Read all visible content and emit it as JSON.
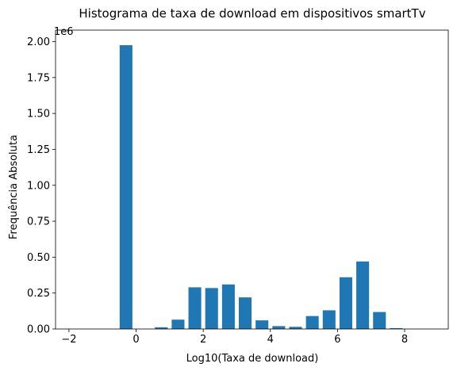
{
  "chart_data": {
    "type": "bar",
    "title": "Histograma de taxa de download em dispositivos smartTv",
    "xlabel": "Log10(Taxa de download)",
    "ylabel": "Frequência Absoluta",
    "y_offset_text": "1e6",
    "xlim": [
      -2.4,
      9.3
    ],
    "ylim": [
      0,
      2.08
    ],
    "x_ticks": [
      -2,
      0,
      2,
      4,
      6,
      8
    ],
    "x_tick_labels": [
      "−2",
      "0",
      "2",
      "4",
      "6",
      "8"
    ],
    "y_ticks": [
      0,
      0.25,
      0.5,
      0.75,
      1.0,
      1.25,
      1.5,
      1.75,
      2.0
    ],
    "y_tick_labels": [
      "0.00",
      "0.25",
      "0.50",
      "0.75",
      "1.00",
      "1.25",
      "1.50",
      "1.75",
      "2.00"
    ],
    "bar_width": 0.38,
    "grid": false,
    "legend": "none",
    "color": "#1f77b4",
    "bars": [
      {
        "x": -0.3,
        "value": 1.975
      },
      {
        "x": 0.75,
        "value": 0.012
      },
      {
        "x": 1.25,
        "value": 0.065
      },
      {
        "x": 1.75,
        "value": 0.29
      },
      {
        "x": 2.25,
        "value": 0.285
      },
      {
        "x": 2.75,
        "value": 0.31
      },
      {
        "x": 3.25,
        "value": 0.22
      },
      {
        "x": 3.75,
        "value": 0.06
      },
      {
        "x": 4.25,
        "value": 0.02
      },
      {
        "x": 4.75,
        "value": 0.015
      },
      {
        "x": 5.25,
        "value": 0.09
      },
      {
        "x": 5.75,
        "value": 0.13
      },
      {
        "x": 6.25,
        "value": 0.36
      },
      {
        "x": 6.75,
        "value": 0.47
      },
      {
        "x": 7.25,
        "value": 0.118
      },
      {
        "x": 7.75,
        "value": 0.006
      }
    ]
  }
}
